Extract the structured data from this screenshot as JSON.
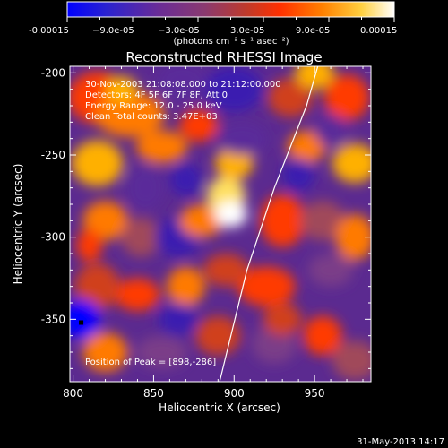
{
  "colorbar": {
    "tick_labels": [
      "-0.00015",
      "−9.0e-05",
      "−3.0e-05",
      "3.0e-05",
      "9.0e-05",
      "0.00015"
    ],
    "unit_label": "(photons cm⁻² s⁻¹ asec⁻²)",
    "range": [
      -0.00015,
      0.00015
    ]
  },
  "header": {
    "title": "Reconstructed RHESSI Image"
  },
  "info": {
    "lines": [
      "30-Nov-2003 21:08:08.000 to 21:12:00.000",
      "Detectors: 4F 5F 6F 7F 8F, Att 0",
      "Energy Range: 12.0 - 25.0 keV",
      "Clean    Total counts: 3.47E+03"
    ],
    "peak_label": "Position of Peak = [898,-286]"
  },
  "footer": {
    "timestamp": "31-May-2013 14:17"
  },
  "chart_data": {
    "type": "heatmap",
    "title": "Reconstructed RHESSI Image",
    "xlabel": "Heliocentric X (arcsec)",
    "ylabel": "Heliocentric Y (arcsec)",
    "xlim": [
      798,
      985
    ],
    "ylim": [
      -388,
      -196
    ],
    "x_ticks": [
      800,
      850,
      900,
      950
    ],
    "y_ticks": [
      -200,
      -250,
      -300,
      -350
    ],
    "peak": [
      898,
      -286
    ],
    "limb_curve": [
      [
        891,
        -388
      ],
      [
        908,
        -320
      ],
      [
        925,
        -270
      ],
      [
        945,
        -220
      ],
      [
        952,
        -196
      ]
    ],
    "marker": [
      805,
      -352
    ],
    "colorscale": [
      "#0000ff",
      "#3a1fb0",
      "#5a2c9a",
      "#7a3c88",
      "#a04a5a",
      "#d0401a",
      "#ff3a00",
      "#ff7a00",
      "#ffb000",
      "#ffe060",
      "#ffffff"
    ]
  }
}
